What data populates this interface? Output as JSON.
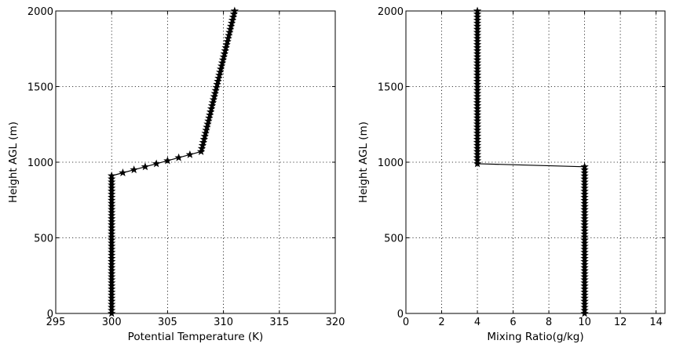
{
  "chart_data": [
    {
      "type": "line",
      "xlabel": "Potential Temperature (K)",
      "ylabel": "Height AGL (m)",
      "xlim": [
        295,
        320
      ],
      "ylim": [
        0,
        2000
      ],
      "xticks": [
        295,
        300,
        305,
        310,
        315,
        320
      ],
      "yticks": [
        0,
        500,
        1000,
        1500,
        2000
      ],
      "grid": true,
      "marker": "star",
      "series": [
        {
          "segments": [
            {
              "x": [
                300,
                300
              ],
              "y": [
                0,
                910
              ],
              "n_points": 46
            },
            {
              "x": [
                300,
                308
              ],
              "y": [
                910,
                1070
              ],
              "n_points": 9
            },
            {
              "x": [
                308,
                311
              ],
              "y": [
                1070,
                2000
              ],
              "n_points": 47
            }
          ]
        }
      ]
    },
    {
      "type": "line",
      "xlabel": "Mixing Ratio(g/kg)",
      "ylabel": "Height AGL (m)",
      "xlim": [
        0,
        14.5
      ],
      "ylim": [
        0,
        2000
      ],
      "xticks": [
        0,
        2,
        4,
        6,
        8,
        10,
        12,
        14
      ],
      "yticks": [
        0,
        500,
        1000,
        1500,
        2000
      ],
      "grid": true,
      "marker": "star",
      "series": [
        {
          "segments": [
            {
              "x": [
                10,
                10
              ],
              "y": [
                0,
                970
              ],
              "n_points": 49
            },
            {
              "x": [
                10,
                4
              ],
              "y": [
                970,
                990
              ],
              "n_points": 2
            },
            {
              "x": [
                4,
                4
              ],
              "y": [
                990,
                2000
              ],
              "n_points": 51
            }
          ]
        }
      ]
    }
  ]
}
